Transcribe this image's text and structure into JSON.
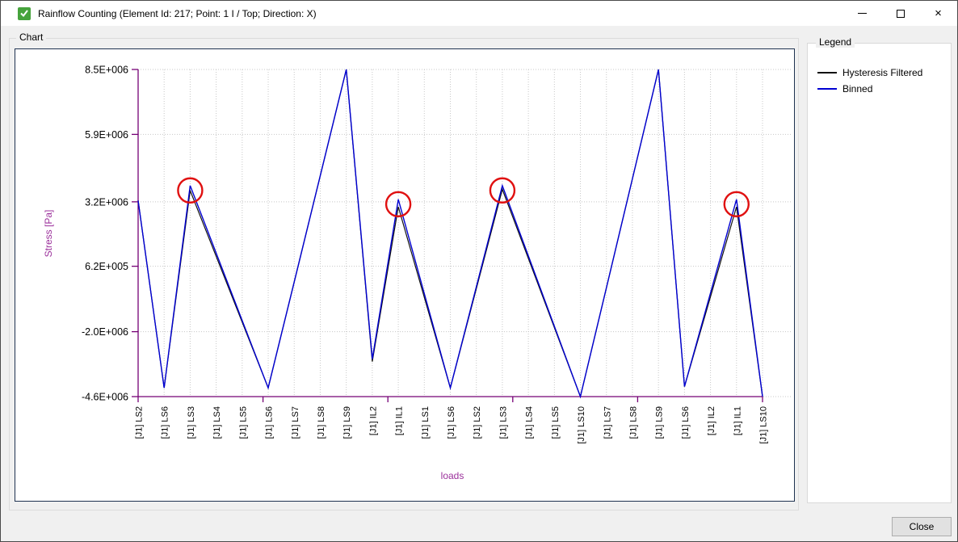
{
  "window": {
    "title": "Rainflow Counting (Element Id: 217; Point: 1 I / Top; Direction: X)"
  },
  "chart_group_label": "Chart",
  "legend": {
    "title": "Legend",
    "items": [
      {
        "label": "Hysteresis Filtered",
        "color": "#111111"
      },
      {
        "label": "Binned",
        "color": "#0000d2"
      }
    ]
  },
  "close_button_label": "Close",
  "colors": {
    "panel_border_navy": "#1f3250",
    "axis_purple": "#750075",
    "axis_title_purple": "#9b309b",
    "grid_gray": "#c8c8c8",
    "annotation_red": "#e01010",
    "titlebar_icon_green": "#46a33c"
  },
  "chart_data": {
    "type": "line",
    "title": "",
    "xlabel": "loads",
    "ylabel": "Stress [Pa]",
    "grid": "dotted",
    "legend_position": "right",
    "ylim": [
      -4600000,
      8500000
    ],
    "y_ticks": [
      {
        "label": "8.5E+006",
        "value": 8500000
      },
      {
        "label": "5.9E+006",
        "value": 5900000
      },
      {
        "label": "3.2E+006",
        "value": 3200000
      },
      {
        "label": "6.2E+005",
        "value": 620000
      },
      {
        "label": "-2.0E+006",
        "value": -2000000
      },
      {
        "label": "-4.6E+006",
        "value": -4600000
      }
    ],
    "x_major_tick_count": 6,
    "categories": [
      "[J1] LS2",
      "[J1] LS6",
      "[J1] LS3",
      "[J1] LS4",
      "[J1] LS5",
      "[J1] LS6",
      "[J1] LS7",
      "[J1] LS8",
      "[J1] LS9",
      "[J1] IL2",
      "[J1] IL1",
      "[J1] LS1",
      "[J1] LS6",
      "[J1] LS2",
      "[J1] LS3",
      "[J1] LS4",
      "[J1] LS5",
      "[J1] LS10",
      "[J1] LS7",
      "[J1] LS8",
      "[J1] LS9",
      "[J1] LS6",
      "[J1] IL2",
      "[J1] IL1",
      "[J1] LS10"
    ],
    "series": [
      {
        "name": "Hysteresis Filtered",
        "color": "#111111",
        "values": [
          3250000,
          -4250000,
          3650000,
          1017000,
          -1617000,
          -4250000,
          0,
          4250000,
          8500000,
          -3200000,
          3000000,
          -625000,
          -4250000,
          -275000,
          3700000,
          933000,
          -1833000,
          -4600000,
          -233000,
          4133000,
          8500000,
          -4200000,
          -600000,
          3000000,
          -4600000
        ]
      },
      {
        "name": "Binned",
        "color": "#0000d2",
        "values": [
          3250000,
          -4250000,
          3850000,
          1150000,
          -1550000,
          -4250000,
          0,
          4250000,
          8500000,
          -3100000,
          3300000,
          -475000,
          -4250000,
          -200000,
          3850000,
          1033000,
          -1783000,
          -4600000,
          -233000,
          4133000,
          8500000,
          -4200000,
          -450000,
          3300000,
          -4600000
        ]
      }
    ],
    "annotations": {
      "circled_point_indices": [
        2,
        10,
        14,
        23
      ],
      "circle_color": "#e01010"
    }
  }
}
